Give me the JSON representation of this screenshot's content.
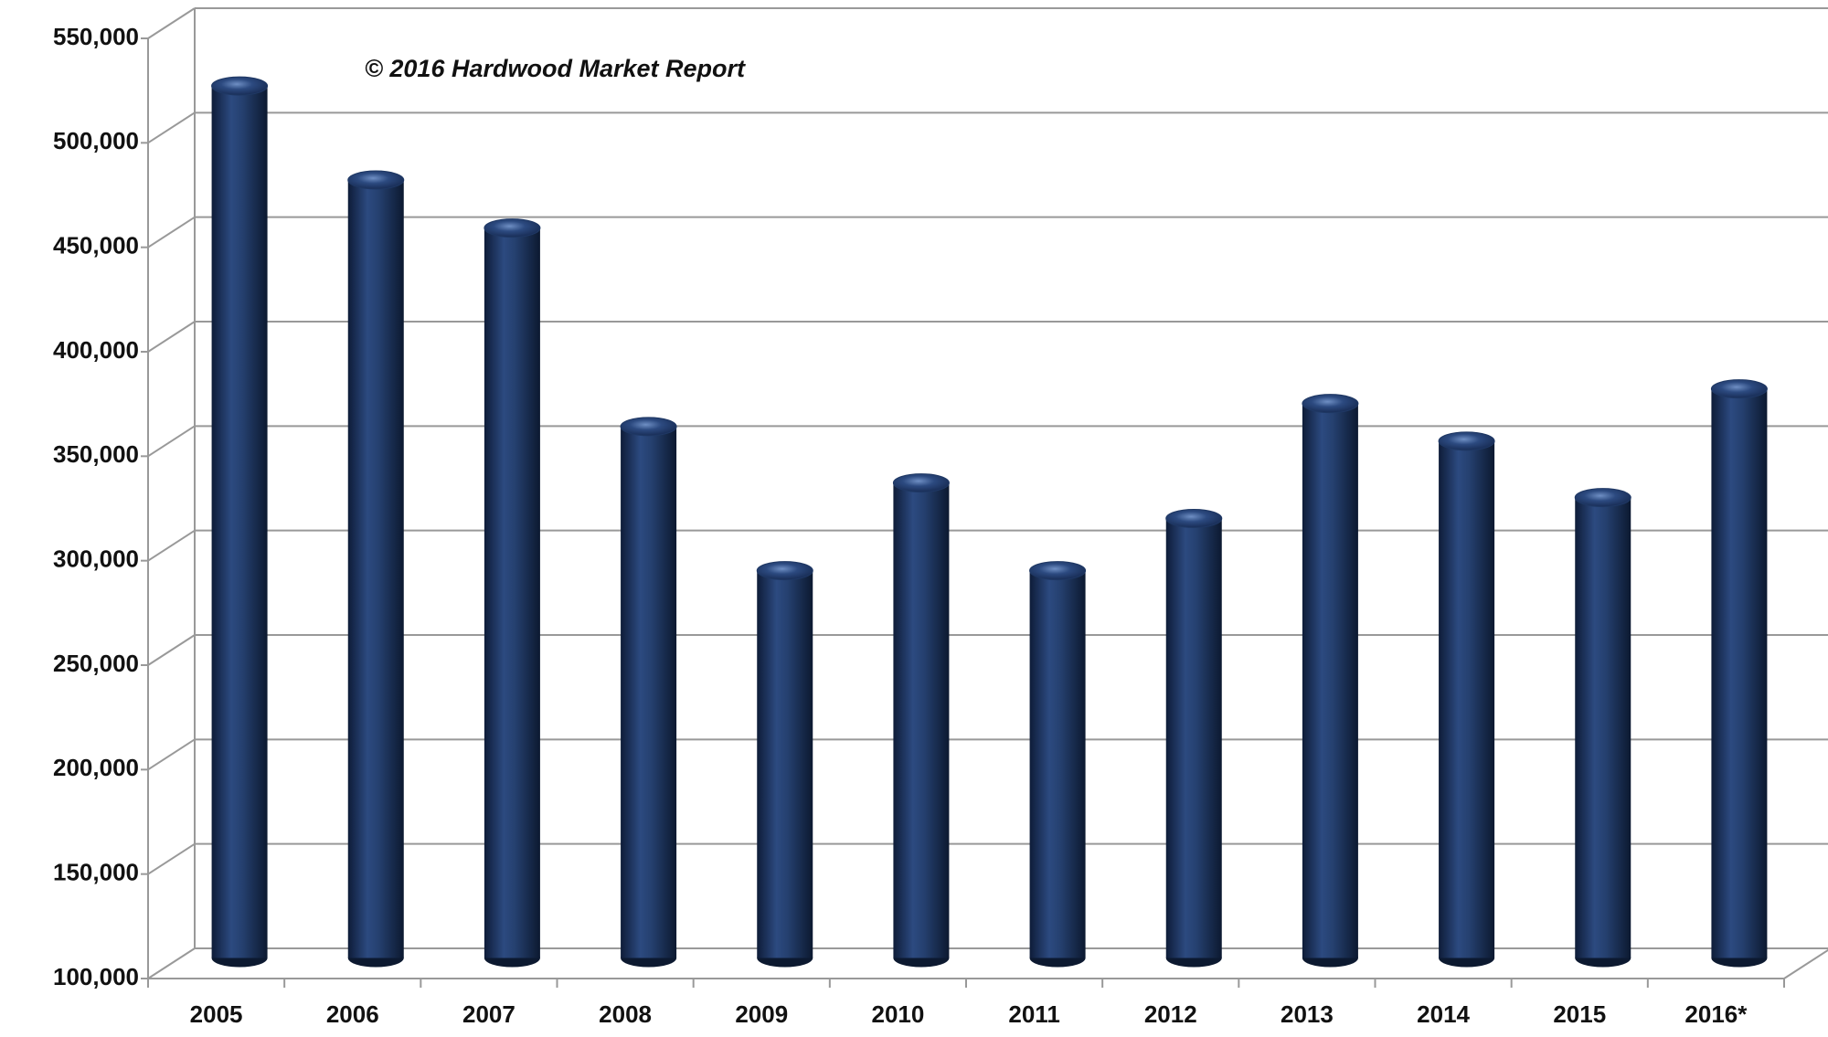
{
  "chart_data": {
    "type": "bar",
    "annotation": "© 2016 Hardwood Market Report",
    "categories": [
      "2005",
      "2006",
      "2007",
      "2008",
      "2009",
      "2010",
      "2011",
      "2012",
      "2013",
      "2014",
      "2015",
      "2016*"
    ],
    "values": [
      520000,
      475000,
      452000,
      357000,
      288000,
      330000,
      288000,
      313000,
      368000,
      350000,
      323000,
      375000
    ],
    "color": "#1f3864",
    "ylim": [
      100000,
      550000
    ],
    "yticks": [
      {
        "value": 100000,
        "label": "100,000"
      },
      {
        "value": 150000,
        "label": "150,000"
      },
      {
        "value": 200000,
        "label": "200,000"
      },
      {
        "value": 250000,
        "label": "250,000"
      },
      {
        "value": 300000,
        "label": "300,000"
      },
      {
        "value": 350000,
        "label": "350,000"
      },
      {
        "value": 400000,
        "label": "400,000"
      },
      {
        "value": 450000,
        "label": "450,000"
      },
      {
        "value": 500000,
        "label": "500,000"
      },
      {
        "value": 550000,
        "label": "550,000"
      }
    ],
    "grid": true
  }
}
